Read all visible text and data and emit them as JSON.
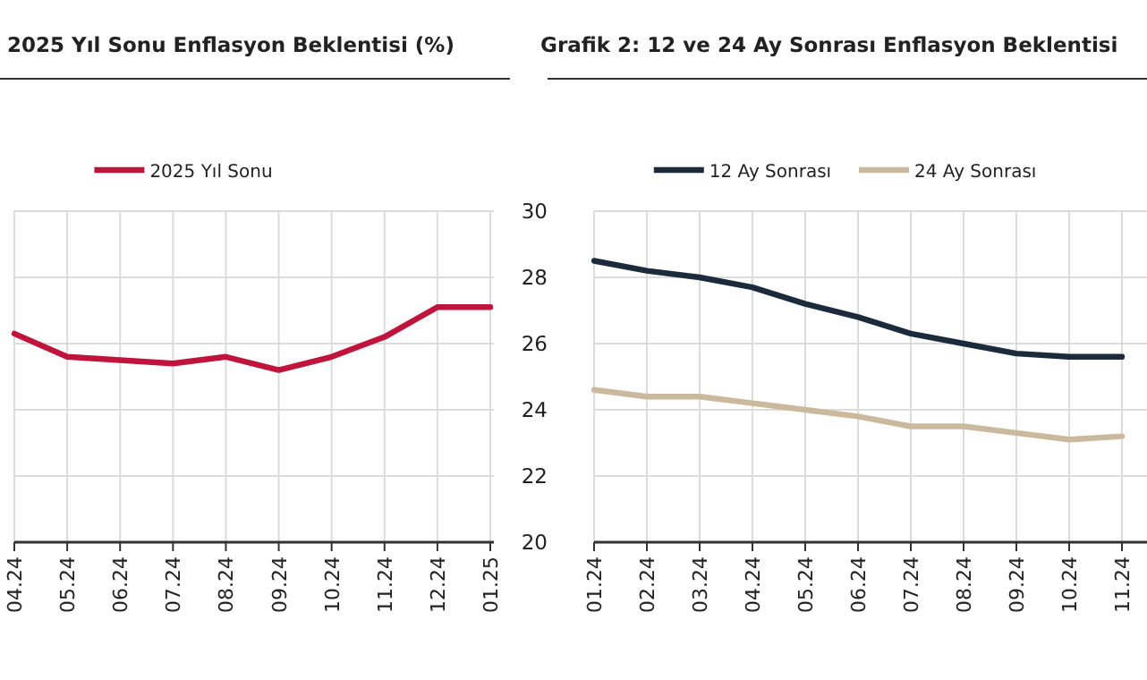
{
  "chart_data": [
    {
      "type": "line",
      "title": "2025 Yıl Sonu Enflasyon Beklentisi (%)",
      "categories": [
        "04.24",
        "05.24",
        "06.24",
        "07.24",
        "08.24",
        "09.24",
        "10.24",
        "11.24",
        "12.24",
        "01.25"
      ],
      "series": [
        {
          "name": "2025 Yıl Sonu",
          "color": "#c0143c",
          "values": [
            26.3,
            25.6,
            25.5,
            25.4,
            25.6,
            25.2,
            25.6,
            26.2,
            27.1,
            27.1
          ]
        }
      ],
      "ylim": [
        20,
        30
      ],
      "yticks": [
        20,
        22,
        24,
        26,
        28,
        30
      ],
      "tick_labels": "x",
      "grid": true,
      "legend": "top",
      "marker": "none",
      "line_style": "solid"
    },
    {
      "type": "line",
      "title": "Grafik 2: 12 ve 24 Ay Sonrası Enflasyon Beklentisi",
      "categories": [
        "01.24",
        "02.24",
        "03.24",
        "04.24",
        "05.24",
        "06.24",
        "07.24",
        "08.24",
        "09.24",
        "10.24",
        "11.24"
      ],
      "series": [
        {
          "name": "12 Ay Sonrası",
          "color": "#1c2b3c",
          "values": [
            28.5,
            28.2,
            28.0,
            27.7,
            27.2,
            26.8,
            26.3,
            26.0,
            25.7,
            25.6,
            25.6
          ]
        },
        {
          "name": "24 Ay Sonrası",
          "color": "#cbb99d",
          "values": [
            24.6,
            24.4,
            24.4,
            24.2,
            24.0,
            23.8,
            23.5,
            23.5,
            23.3,
            23.1,
            23.2
          ]
        }
      ],
      "ylim": [
        20,
        30
      ],
      "yticks": [
        20,
        22,
        24,
        26,
        28,
        30
      ],
      "grid": true,
      "legend": "top",
      "marker": "none",
      "line_style": "solid"
    }
  ]
}
